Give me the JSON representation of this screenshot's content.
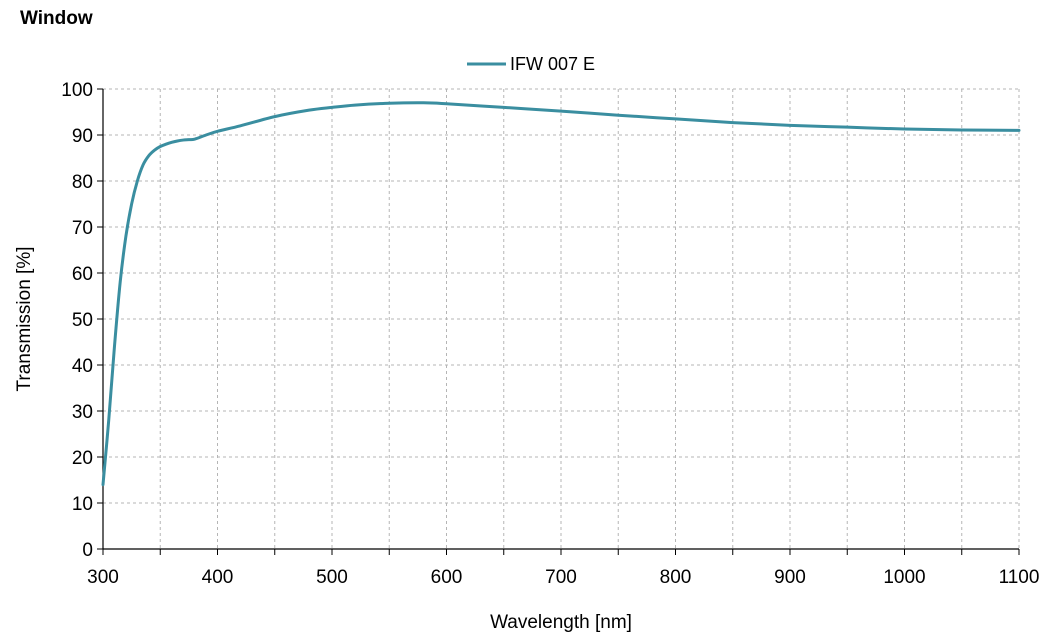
{
  "chart_data": {
    "type": "line",
    "title": "Window",
    "xlabel": "Wavelength [nm]",
    "ylabel": "Transmission [%]",
    "xlim": [
      300,
      1100
    ],
    "ylim": [
      0,
      100
    ],
    "x_ticks": [
      300,
      400,
      500,
      600,
      700,
      800,
      900,
      1000,
      1100
    ],
    "y_ticks": [
      0,
      10,
      20,
      30,
      40,
      50,
      60,
      70,
      80,
      90,
      100
    ],
    "grid": true,
    "legend_position": "top-center",
    "series": [
      {
        "name": "IFW 007 E",
        "color": "#3a8ea0",
        "x": [
          300,
          305,
          310,
          315,
          320,
          325,
          330,
          335,
          340,
          345,
          350,
          355,
          360,
          365,
          370,
          375,
          380,
          390,
          400,
          420,
          450,
          480,
          500,
          520,
          550,
          580,
          600,
          650,
          700,
          750,
          800,
          850,
          900,
          950,
          1000,
          1050,
          1100
        ],
        "y": [
          14,
          28,
          44,
          58,
          68,
          75,
          80,
          83.5,
          85.5,
          86.7,
          87.5,
          88,
          88.4,
          88.7,
          88.9,
          89,
          89.1,
          90,
          90.8,
          92,
          94,
          95.4,
          96,
          96.5,
          96.9,
          97,
          96.8,
          96,
          95.2,
          94.3,
          93.5,
          92.7,
          92.1,
          91.7,
          91.3,
          91.1,
          91
        ]
      }
    ]
  }
}
